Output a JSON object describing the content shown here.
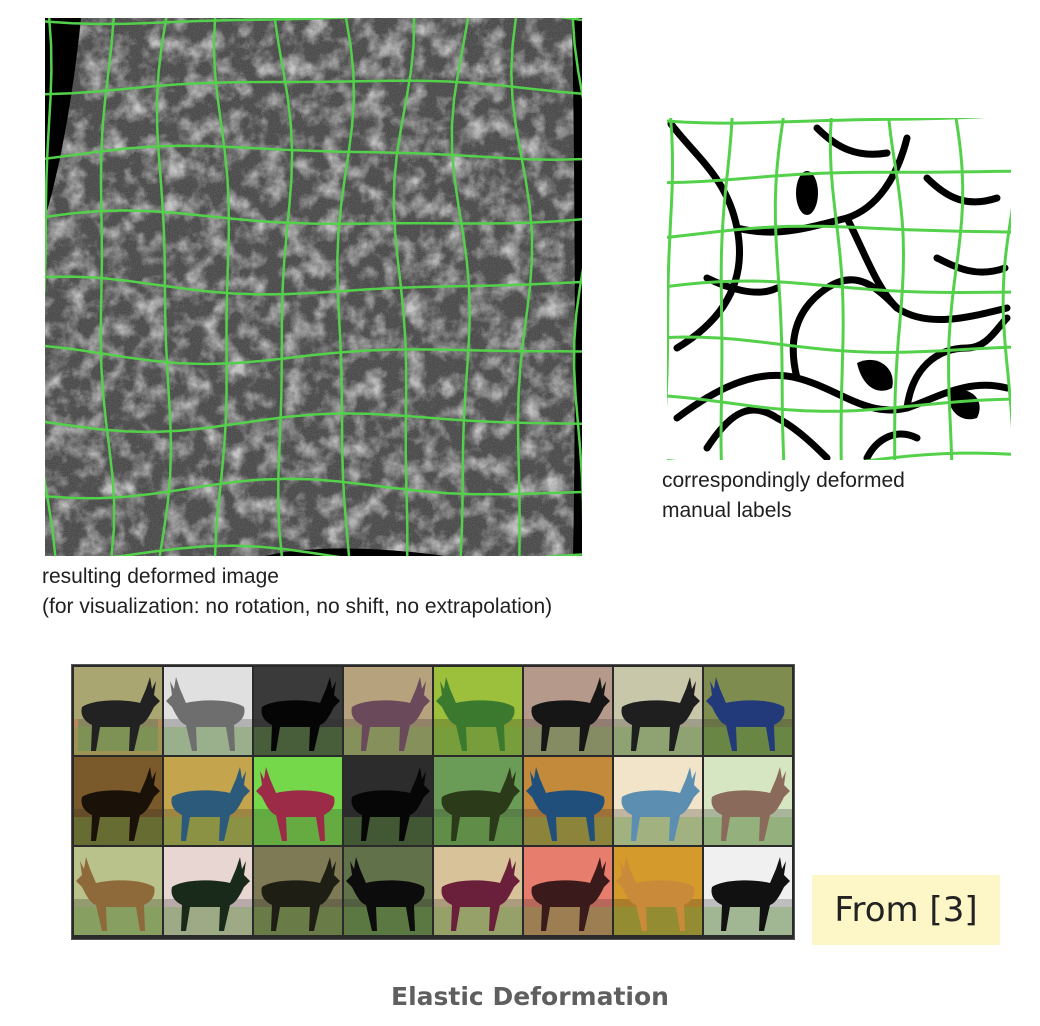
{
  "em_panel": {
    "caption_line1": "resulting deformed image",
    "caption_line2": "(for visualization: no rotation, no shift, no extrapolation)"
  },
  "labels_panel": {
    "caption_line1": "correspondingly deformed",
    "caption_line2": "manual labels"
  },
  "augmentation_grid": {
    "rows": 3,
    "columns": 8,
    "selected_cell": 0,
    "selected_border_color": "#d93025",
    "tints": [
      [
        "#a9a671",
        "#e0e0e0",
        "#3a3a3a",
        "#b6a27d",
        "#9cbf3c",
        "#b59a8c",
        "#c9c7aa",
        "#7f8c4f"
      ],
      [
        "#7a5a2a",
        "#c4a54e",
        "#74d84a",
        "#2c2c2c",
        "#6a9c57",
        "#c48a3c",
        "#f1e4c8",
        "#d6e6c2"
      ],
      [
        "#b9c28a",
        "#e8d6d3",
        "#7e7a55",
        "#61724a",
        "#d8c29a",
        "#e77d6c",
        "#d49a2b",
        "#f0f0f0"
      ]
    ],
    "animal_colors": [
      [
        "#222222",
        "#6e6e6e",
        "#050505",
        "#6a4a5a",
        "#3b7a2e",
        "#161616",
        "#1f1f1f",
        "#233a7a"
      ],
      [
        "#1a1208",
        "#2c5a7a",
        "#9c2b48",
        "#060606",
        "#2b3a18",
        "#1f4f7a",
        "#5b8eb0",
        "#8a6a5a"
      ],
      [
        "#8e6a3a",
        "#1a2a1a",
        "#1e1e14",
        "#0c0c0c",
        "#6a1f3a",
        "#3a1a1a",
        "#c98a3a",
        "#111111"
      ]
    ]
  },
  "source_label": "From [3]",
  "figure_title": "Elastic Deformation",
  "colors": {
    "grid_line": "#54d14b",
    "source_label_bg": "#fdf7c7"
  }
}
